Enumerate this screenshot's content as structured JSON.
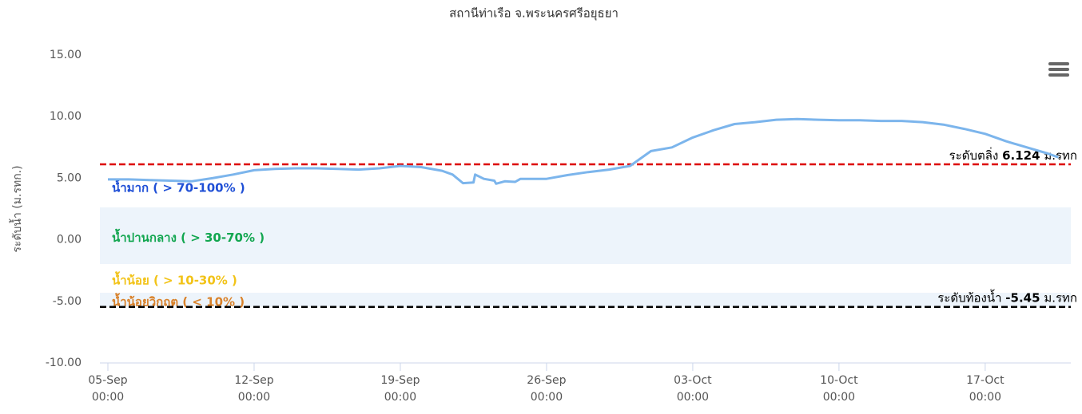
{
  "chart_data": {
    "type": "line",
    "title": "สถานีท่าเรือ จ.พระนครศรีอยุธยา",
    "y_axis_label": "ระดับน้ำ (ม.รทก.)",
    "ylim": [
      -10,
      15
    ],
    "yticks": [
      {
        "value": 15,
        "label": "15.00"
      },
      {
        "value": 10,
        "label": "10.00"
      },
      {
        "value": 5,
        "label": "5.00"
      },
      {
        "value": 0,
        "label": "0.00"
      },
      {
        "value": -5,
        "label": "-5.00"
      },
      {
        "value": -10,
        "label": "-10.00"
      }
    ],
    "xticks": [
      {
        "value": "05-Sep 00:00",
        "label": [
          "05-Sep",
          "00:00"
        ]
      },
      {
        "value": "12-Sep 00:00",
        "label": [
          "12-Sep",
          "00:00"
        ]
      },
      {
        "value": "19-Sep 00:00",
        "label": [
          "19-Sep",
          "00:00"
        ]
      },
      {
        "value": "26-Sep 00:00",
        "label": [
          "26-Sep",
          "00:00"
        ]
      },
      {
        "value": "03-Oct 00:00",
        "label": [
          "03-Oct",
          "00:00"
        ]
      },
      {
        "value": "10-Oct 00:00",
        "label": [
          "10-Oct",
          "00:00"
        ]
      },
      {
        "value": "17-Oct 00:00",
        "label": [
          "17-Oct",
          "00:00"
        ]
      }
    ],
    "bands": [
      {
        "from": 2.63,
        "to": 6.124,
        "color": "#ffffff",
        "label": "น้ำมาก ( > 70-100% )",
        "label_color": "#1f4fd6"
      },
      {
        "from": -1.97,
        "to": 2.63,
        "color": "#edf4fb",
        "label": "น้ำปานกลาง ( > 30-70% )",
        "label_color": "#12a650"
      },
      {
        "from": -4.3,
        "to": -1.97,
        "color": "#ffffff",
        "label": "น้ำน้อย ( > 10-30% )",
        "label_color": "#f2c318"
      },
      {
        "from": -5.45,
        "to": -4.3,
        "color": "#edf4fb",
        "label": "น้ำน้อยวิกฤต ( < 10% )",
        "label_color": "#d9822b"
      }
    ],
    "thresholds": [
      {
        "value": 6.124,
        "prefix": "ระดับตลิ่ง",
        "suffix": "ม.รทก",
        "color": "#dd0000"
      },
      {
        "value": -5.45,
        "prefix": "ระดับท้องน้ำ",
        "suffix": "ม.รทก",
        "color": "#000000"
      }
    ],
    "series": [
      {
        "color": "#7cb5ec",
        "x": [
          "05-Sep 00:00",
          "06-Sep 00:00",
          "07-Sep 00:00",
          "08-Sep 00:00",
          "09-Sep 00:00",
          "10-Sep 00:00",
          "11-Sep 00:00",
          "12-Sep 00:00",
          "13-Sep 00:00",
          "14-Sep 00:00",
          "15-Sep 00:00",
          "16-Sep 00:00",
          "17-Sep 00:00",
          "18-Sep 00:00",
          "19-Sep 00:00",
          "20-Sep 00:00",
          "21-Sep 00:00",
          "21-Sep 12:00",
          "22-Sep 00:00",
          "22-Sep 12:00",
          "22-Sep 14:00",
          "23-Sep 00:00",
          "23-Sep 12:00",
          "23-Sep 14:00",
          "24-Sep 00:00",
          "24-Sep 12:00",
          "24-Sep 18:00",
          "25-Sep 00:00",
          "26-Sep 00:00",
          "27-Sep 00:00",
          "28-Sep 00:00",
          "29-Sep 00:00",
          "30-Sep 00:00",
          "01-Oct 00:00",
          "02-Oct 00:00",
          "03-Oct 00:00",
          "04-Oct 00:00",
          "05-Oct 00:00",
          "06-Oct 00:00",
          "07-Oct 00:00",
          "08-Oct 00:00",
          "09-Oct 00:00",
          "10-Oct 00:00",
          "11-Oct 00:00",
          "12-Oct 00:00",
          "13-Oct 00:00",
          "14-Oct 00:00",
          "15-Oct 00:00",
          "16-Oct 00:00",
          "17-Oct 00:00",
          "18-Oct 00:00",
          "19-Oct 00:00",
          "20-Oct 00:00",
          "20-Oct 12:00"
        ],
        "values": [
          4.9,
          4.9,
          4.85,
          4.8,
          4.75,
          5.0,
          5.3,
          5.65,
          5.75,
          5.8,
          5.8,
          5.75,
          5.7,
          5.8,
          6.0,
          5.9,
          5.6,
          5.3,
          4.6,
          4.65,
          5.3,
          4.95,
          4.8,
          4.55,
          4.75,
          4.7,
          4.95,
          4.95,
          4.95,
          5.25,
          5.5,
          5.7,
          6.0,
          7.2,
          7.5,
          8.3,
          8.9,
          9.4,
          9.55,
          9.75,
          9.8,
          9.75,
          9.7,
          9.7,
          9.65,
          9.65,
          9.55,
          9.35,
          9.0,
          8.6,
          8.0,
          7.5,
          7.0,
          6.7
        ]
      }
    ]
  }
}
